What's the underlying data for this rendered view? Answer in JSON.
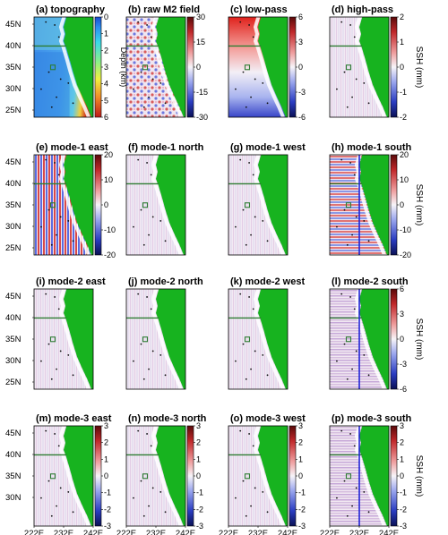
{
  "figure": {
    "rows": [
      {
        "panels": [
          {
            "id": "a",
            "title": "(a) topography",
            "field": "topo"
          },
          {
            "id": "b",
            "title": "(b) raw M2 field",
            "field": "raw"
          },
          {
            "id": "c",
            "title": "(c) low-pass",
            "field": "lowpass"
          },
          {
            "id": "d",
            "title": "(d) high-pass",
            "field": "highpass"
          }
        ],
        "colorbars": [
          {
            "after_panel": 0,
            "ticks": [
              "0",
              "1",
              "2",
              "3",
              "4",
              "5",
              "6"
            ],
            "label": "Depth (km)",
            "scheme": "topo"
          },
          {
            "after_panel": 1,
            "ticks": [
              "30",
              "15",
              "0",
              "-15",
              "-30"
            ],
            "label": "",
            "scheme": "div"
          },
          {
            "after_panel": 2,
            "ticks": [
              "6",
              "3",
              "0",
              "-3",
              "-6"
            ],
            "label": "",
            "scheme": "div"
          },
          {
            "after_panel": 3,
            "ticks": [
              "2",
              "1",
              "0",
              "-1",
              "-2"
            ],
            "label": "SSH (mm)",
            "scheme": "div"
          }
        ]
      },
      {
        "panels": [
          {
            "id": "e",
            "title": "(e) mode-1 east",
            "field": "m1e"
          },
          {
            "id": "f",
            "title": "(f) mode-1 north",
            "field": "m1n"
          },
          {
            "id": "g",
            "title": "(g) mode-1 west",
            "field": "m1w"
          },
          {
            "id": "h",
            "title": "(h) mode-1 south",
            "field": "m1s"
          }
        ],
        "colorbars": [
          {
            "after_panel": 0,
            "ticks": [
              "20",
              "10",
              "0",
              "-10",
              "-20"
            ],
            "label": "",
            "scheme": "div"
          },
          {
            "after_panel": 3,
            "ticks": [
              "20",
              "10",
              "0",
              "-10",
              "-20"
            ],
            "label": "SSH (mm)",
            "scheme": "div"
          }
        ]
      },
      {
        "panels": [
          {
            "id": "i",
            "title": "(i) mode-2 east",
            "field": "m2e"
          },
          {
            "id": "j",
            "title": "(j) mode-2 north",
            "field": "m2n"
          },
          {
            "id": "k",
            "title": "(k) mode-2 west",
            "field": "m2w"
          },
          {
            "id": "l",
            "title": "(l) mode-2 south",
            "field": "m2s"
          }
        ],
        "colorbars": [
          {
            "after_panel": 3,
            "ticks": [
              "6",
              "3",
              "0",
              "-3",
              "-6"
            ],
            "label": "SSH (mm)",
            "scheme": "div"
          }
        ]
      },
      {
        "panels": [
          {
            "id": "m",
            "title": "(m) mode-3 east",
            "field": "m3e"
          },
          {
            "id": "n",
            "title": "(n) mode-3 north",
            "field": "m3n"
          },
          {
            "id": "o",
            "title": "(o) mode-3 west",
            "field": "m3w"
          },
          {
            "id": "p",
            "title": "(p) mode-3 south",
            "field": "m3s"
          }
        ],
        "colorbars": [
          {
            "after_panel": 0,
            "ticks": [
              "3",
              "2",
              "1",
              "0",
              "-1",
              "-2",
              "-3"
            ],
            "label": "",
            "scheme": "div"
          },
          {
            "after_panel": 1,
            "ticks": [
              "3",
              "2",
              "1",
              "0",
              "-1",
              "-2",
              "-3"
            ],
            "label": "",
            "scheme": "div"
          },
          {
            "after_panel": 2,
            "ticks": [
              "3",
              "2",
              "1",
              "0",
              "-1",
              "-2",
              "-3"
            ],
            "label": "",
            "scheme": "div"
          },
          {
            "after_panel": 3,
            "ticks": [
              "3",
              "2",
              "1",
              "0",
              "-1",
              "-2",
              "-3"
            ],
            "label": "SSH (mm)",
            "scheme": "div"
          }
        ]
      }
    ],
    "lat_ticks_rows_1_3": [
      "45N",
      "40N",
      "35N",
      "30N",
      "25N"
    ],
    "lat_ticks_row_4": [
      "45N",
      "40N",
      "35N",
      "30N"
    ],
    "lon_ticks": [
      "222E",
      "232E",
      "242E"
    ],
    "colors": {
      "land": "#17b31f",
      "boundary_line": "#2e7d32",
      "meridian_line": "#1f22d6",
      "div_low": "#1a2a8f",
      "div_high": "#8a1515",
      "div_mid": "#f4eef5"
    }
  }
}
